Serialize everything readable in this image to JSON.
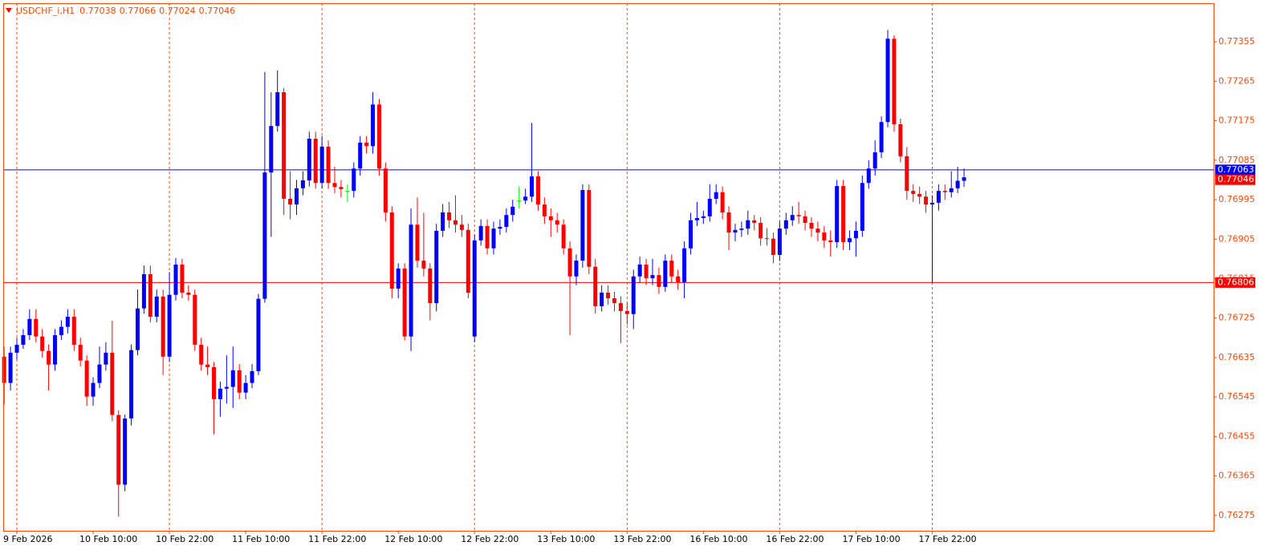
{
  "chart_data": {
    "type": "candlestick",
    "title": "USDCHF_i,H1",
    "axis_color": "#ff4500",
    "up_color": "#0000ff",
    "down_color": "#ff0000",
    "doji_color": "#00ff00",
    "grid": true,
    "ylim": [
      0.7624,
      0.77443
    ],
    "yticks": [
      0.76275,
      0.76365,
      0.76455,
      0.76545,
      0.76635,
      0.76725,
      0.76815,
      0.76905,
      0.76995,
      0.77085,
      0.77175,
      0.77265,
      0.77355
    ],
    "hlines": [
      {
        "value": 0.77063,
        "color": "#0000ff"
      },
      {
        "value": 0.76806,
        "color": "#ff0000"
      }
    ],
    "categories": [
      null,
      null,
      "9 Feb 2026",
      null,
      null,
      null,
      null,
      null,
      null,
      null,
      null,
      null,
      null,
      null,
      "10 Feb 10:00",
      null,
      null,
      null,
      null,
      null,
      null,
      null,
      null,
      null,
      null,
      null,
      "10 Feb 22:00",
      null,
      null,
      null,
      null,
      null,
      null,
      null,
      null,
      null,
      null,
      null,
      "11 Feb 10:00",
      null,
      null,
      null,
      null,
      null,
      null,
      null,
      null,
      null,
      null,
      null,
      "11 Feb 22:00",
      null,
      null,
      null,
      null,
      null,
      null,
      null,
      null,
      null,
      null,
      null,
      "12 Feb 10:00",
      null,
      null,
      null,
      null,
      null,
      null,
      null,
      null,
      null,
      null,
      null,
      "12 Feb 22:00",
      null,
      null,
      null,
      null,
      null,
      null,
      null,
      null,
      null,
      null,
      null,
      "13 Feb 10:00",
      null,
      null,
      null,
      null,
      null,
      null,
      null,
      null,
      null,
      null,
      null,
      "13 Feb 22:00",
      null,
      null,
      null,
      null,
      null,
      null,
      null,
      null,
      null,
      null,
      null,
      "16 Feb 10:00",
      null,
      null,
      null,
      null,
      null,
      null,
      null,
      null,
      null,
      null,
      null,
      "16 Feb 22:00",
      null,
      null,
      null,
      null,
      null,
      null,
      null,
      null,
      null,
      null,
      null,
      "17 Feb 10:00",
      null,
      null,
      null,
      null,
      null,
      null,
      null,
      null,
      null,
      null,
      null,
      "17 Feb 22:00",
      null,
      null,
      null,
      null,
      null
    ],
    "open": [
      0.76637,
      0.76577,
      0.76646,
      0.76664,
      0.76686,
      0.76723,
      0.76683,
      0.7665,
      0.76619,
      0.76686,
      0.76705,
      0.76728,
      0.76664,
      0.76628,
      0.76546,
      0.76577,
      0.76619,
      0.76646,
      0.76504,
      0.76345,
      0.76496,
      0.76652,
      0.76747,
      0.76825,
      0.76728,
      0.76774,
      0.76637,
      0.76778,
      0.76847,
      0.76783,
      0.76778,
      0.76664,
      0.76619,
      0.76613,
      0.7654,
      0.76564,
      0.76568,
      0.76606,
      0.76555,
      0.76577,
      0.76604,
      0.76769,
      0.77057,
      0.77163,
      0.7724,
      0.76997,
      0.76984,
      0.77021,
      0.77039,
      0.77134,
      0.77033,
      0.77116,
      0.77033,
      0.77024,
      0.77015,
      0.77015,
      0.77066,
      0.77125,
      0.77117,
      0.77212,
      0.77066,
      0.76966,
      0.76792,
      0.76838,
      0.76683,
      0.76938,
      0.76856,
      0.76838,
      0.76759,
      0.76924,
      0.76966,
      0.76948,
      0.76938,
      0.76926,
      0.76683,
      0.76902,
      0.76935,
      0.76884,
      0.76929,
      0.76933,
      0.7696,
      0.76993,
      0.76993,
      0.77002,
      0.77048,
      0.76984,
      0.76957,
      0.76948,
      0.76938,
      0.76884,
      0.7682,
      0.76856,
      0.77017,
      0.76842,
      0.76752,
      0.76783,
      0.7677,
      0.76759,
      0.76741,
      0.76734,
      0.7682,
      0.76847,
      0.76816,
      0.76823,
      0.76796,
      0.76856,
      0.7682,
      0.76807,
      0.76884,
      0.76948,
      0.76953,
      0.76957,
      0.76997,
      0.77012,
      0.76966,
      0.7692,
      0.76926,
      0.76929,
      0.76948,
      0.76942,
      0.76907,
      0.76906,
      0.76869,
      0.76929,
      0.76948,
      0.7696,
      0.76957,
      0.76942,
      0.76929,
      0.7692,
      0.76902,
      0.76898,
      0.77026,
      0.76898,
      0.76907,
      0.76924,
      0.77033,
      0.77066,
      0.77103,
      0.77172,
      0.77362,
      0.77167,
      0.77094,
      0.77015,
      0.77008,
      0.77002,
      0.76984,
      0.76988,
      0.77015,
      0.77012,
      0.77021,
      0.77038
    ],
    "high": [
      0.7666,
      0.7666,
      0.7668,
      0.767,
      0.76745,
      0.76745,
      0.767,
      0.76665,
      0.767,
      0.7672,
      0.76745,
      0.76745,
      0.7668,
      0.7664,
      0.7659,
      0.7666,
      0.7667,
      0.76719,
      0.76515,
      0.76505,
      0.76665,
      0.7679,
      0.76845,
      0.76845,
      0.7679,
      0.7679,
      0.7683,
      0.76862,
      0.7686,
      0.768,
      0.7679,
      0.7668,
      0.7666,
      0.76625,
      0.7658,
      0.7664,
      0.7666,
      0.7662,
      0.76595,
      0.7662,
      0.7678,
      0.77286,
      0.7724,
      0.7729,
      0.7725,
      0.7706,
      0.7704,
      0.7706,
      0.7715,
      0.7715,
      0.7714,
      0.7713,
      0.7707,
      0.7704,
      0.7703,
      0.7708,
      0.7714,
      0.7714,
      0.7724,
      0.77225,
      0.7708,
      0.7698,
      0.7685,
      0.7685,
      0.76975,
      0.77,
      0.76965,
      0.7685,
      0.7694,
      0.76985,
      0.7699,
      0.77005,
      0.7696,
      0.7694,
      0.76915,
      0.7695,
      0.7695,
      0.76945,
      0.7695,
      0.76975,
      0.76995,
      0.77025,
      0.7702,
      0.7717,
      0.7706,
      0.77,
      0.76975,
      0.76965,
      0.7695,
      0.769,
      0.7687,
      0.7703,
      0.7703,
      0.7686,
      0.768,
      0.768,
      0.76785,
      0.76775,
      0.7676,
      0.76835,
      0.76865,
      0.7686,
      0.7686,
      0.7684,
      0.7687,
      0.7687,
      0.76835,
      0.769,
      0.76965,
      0.7699,
      0.7697,
      0.7703,
      0.7703,
      0.77025,
      0.7698,
      0.7694,
      0.76945,
      0.7697,
      0.7696,
      0.76955,
      0.7693,
      0.7692,
      0.76945,
      0.76965,
      0.7698,
      0.7699,
      0.7697,
      0.76955,
      0.76945,
      0.76935,
      0.76925,
      0.7704,
      0.7704,
      0.76925,
      0.76945,
      0.7705,
      0.77085,
      0.7713,
      0.77185,
      0.77382,
      0.7737,
      0.7718,
      0.77115,
      0.7703,
      0.77025,
      0.77015,
      0.77005,
      0.7703,
      0.7703,
      0.7706,
      0.7707,
      0.77066
    ],
    "low": [
      0.76528,
      0.7656,
      0.7663,
      0.76655,
      0.76675,
      0.7667,
      0.76635,
      0.7656,
      0.76605,
      0.76675,
      0.7669,
      0.7665,
      0.76615,
      0.76525,
      0.76525,
      0.76565,
      0.76605,
      0.7649,
      0.76272,
      0.7633,
      0.7648,
      0.7664,
      0.76735,
      0.76715,
      0.76715,
      0.76595,
      0.76625,
      0.76765,
      0.7677,
      0.76765,
      0.7665,
      0.76605,
      0.76595,
      0.7646,
      0.765,
      0.7653,
      0.7652,
      0.7654,
      0.7654,
      0.76565,
      0.76595,
      0.7676,
      0.7691,
      0.7715,
      0.7696,
      0.7695,
      0.7696,
      0.77005,
      0.77025,
      0.7702,
      0.7702,
      0.7702,
      0.7701,
      0.77,
      0.7699,
      0.77,
      0.7705,
      0.771,
      0.771,
      0.7705,
      0.76945,
      0.7677,
      0.7677,
      0.76674,
      0.7665,
      0.7684,
      0.7682,
      0.7672,
      0.7674,
      0.7691,
      0.7693,
      0.7692,
      0.7691,
      0.7677,
      0.7667,
      0.7689,
      0.7687,
      0.7687,
      0.76915,
      0.7692,
      0.76945,
      0.76975,
      0.76985,
      0.7699,
      0.7697,
      0.7694,
      0.7691,
      0.7692,
      0.7687,
      0.76686,
      0.768,
      0.7684,
      0.76825,
      0.76735,
      0.7674,
      0.76755,
      0.7674,
      0.76668,
      0.7671,
      0.767,
      0.76805,
      0.768,
      0.768,
      0.7678,
      0.76785,
      0.76805,
      0.7679,
      0.7677,
      0.7687,
      0.76935,
      0.7694,
      0.76945,
      0.76985,
      0.7695,
      0.7688,
      0.769,
      0.7691,
      0.76915,
      0.76925,
      0.7689,
      0.7689,
      0.7685,
      0.76855,
      0.76915,
      0.76935,
      0.7694,
      0.76925,
      0.7691,
      0.769,
      0.76885,
      0.76865,
      0.76885,
      0.7688,
      0.7688,
      0.76865,
      0.7691,
      0.7702,
      0.7705,
      0.7709,
      0.7716,
      0.7715,
      0.7708,
      0.76995,
      0.7699,
      0.76985,
      0.76965,
      0.76806,
      0.7697,
      0.76995,
      0.77,
      0.7701,
      0.77024
    ],
    "close": [
      0.76577,
      0.76646,
      0.76664,
      0.76686,
      0.76723,
      0.76683,
      0.7665,
      0.76619,
      0.76686,
      0.76705,
      0.76728,
      0.76664,
      0.76628,
      0.76546,
      0.76577,
      0.76619,
      0.76646,
      0.76504,
      0.76345,
      0.76496,
      0.76652,
      0.76747,
      0.76825,
      0.76728,
      0.76774,
      0.76637,
      0.76778,
      0.76847,
      0.76783,
      0.76778,
      0.76664,
      0.76619,
      0.76613,
      0.7654,
      0.76564,
      0.76568,
      0.76606,
      0.76555,
      0.76577,
      0.76604,
      0.76769,
      0.77057,
      0.77163,
      0.7724,
      0.76997,
      0.76984,
      0.77021,
      0.77039,
      0.77134,
      0.77033,
      0.77116,
      0.77033,
      0.77024,
      0.77019,
      0.77015,
      0.77066,
      0.77125,
      0.77117,
      0.77212,
      0.77066,
      0.76966,
      0.76792,
      0.76838,
      0.76683,
      0.76938,
      0.76856,
      0.76838,
      0.76759,
      0.76924,
      0.76966,
      0.76948,
      0.76938,
      0.76926,
      0.76783,
      0.76902,
      0.76935,
      0.76884,
      0.76929,
      0.76933,
      0.7696,
      0.76979,
      0.76993,
      0.77002,
      0.77048,
      0.76984,
      0.76957,
      0.76948,
      0.76938,
      0.76884,
      0.7682,
      0.76856,
      0.77017,
      0.76842,
      0.76752,
      0.76783,
      0.7677,
      0.76759,
      0.76741,
      0.76734,
      0.7682,
      0.76847,
      0.76816,
      0.76823,
      0.76796,
      0.76856,
      0.7682,
      0.76807,
      0.76884,
      0.76948,
      0.76953,
      0.76957,
      0.76997,
      0.77012,
      0.76966,
      0.7692,
      0.76926,
      0.76929,
      0.76948,
      0.76942,
      0.76907,
      0.76906,
      0.76869,
      0.76929,
      0.76948,
      0.7696,
      0.76957,
      0.76942,
      0.76929,
      0.7692,
      0.76902,
      0.76898,
      0.77026,
      0.76898,
      0.76907,
      0.76924,
      0.77033,
      0.77066,
      0.77103,
      0.77172,
      0.77362,
      0.77167,
      0.77094,
      0.77015,
      0.77008,
      0.77002,
      0.76984,
      0.76988,
      0.77015,
      0.77012,
      0.77021,
      0.77038,
      0.77046
    ]
  }
}
